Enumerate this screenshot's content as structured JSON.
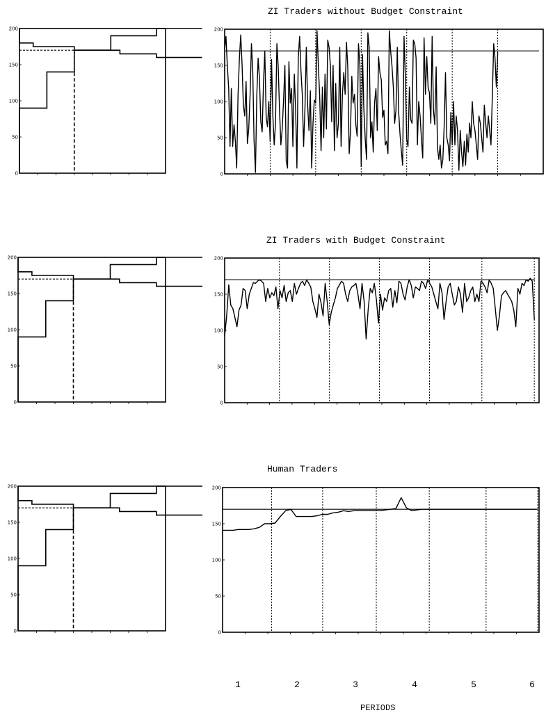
{
  "periods": [
    "1",
    "2",
    "3",
    "4",
    "5",
    "6"
  ],
  "xlabel": "PERIODS",
  "chart_data": [
    {
      "type": "line",
      "id": "zi-no-budget",
      "title": "ZI Traders without Budget Constraint",
      "ylim": [
        0,
        200
      ],
      "yticks": [
        0,
        50,
        100,
        150,
        200
      ],
      "equilibrium_price": 170,
      "period_boundaries": [
        10,
        20,
        30,
        40,
        50,
        60
      ],
      "n_periods": 6,
      "xlim": [
        0,
        70
      ],
      "prices": [
        172,
        190,
        150,
        118,
        38,
        118,
        38,
        68,
        45,
        8,
        108,
        160,
        192,
        152,
        95,
        80,
        128,
        42,
        62,
        110,
        180,
        142,
        45,
        2,
        108,
        160,
        132,
        72,
        58,
        125,
        170,
        78,
        65,
        100,
        45,
        158,
        80,
        40,
        70,
        180,
        148,
        88,
        40,
        62,
        102,
        150,
        18,
        8,
        155,
        98,
        118,
        38,
        138,
        90,
        8,
        160,
        190,
        142,
        110,
        38,
        92,
        175,
        95,
        60,
        115,
        8,
        70,
        102,
        98,
        198,
        150,
        108,
        32,
        120,
        50,
        138,
        62,
        185,
        175,
        150,
        72,
        150,
        32,
        125,
        50,
        70,
        175,
        38,
        110,
        140,
        110,
        182,
        148,
        28,
        58,
        135,
        98,
        110,
        68,
        52,
        180,
        150,
        10,
        165,
        90,
        48,
        20,
        195,
        175,
        50,
        72,
        30,
        98,
        118,
        60,
        162,
        140,
        130,
        78,
        88,
        40,
        45,
        28,
        198,
        170,
        150,
        120,
        70,
        88,
        175,
        85,
        55,
        32,
        12,
        190,
        135,
        48,
        38,
        120,
        75,
        70,
        185,
        180,
        160,
        40,
        100,
        80,
        48,
        22,
        188,
        110,
        162,
        120,
        112,
        70,
        190,
        88,
        68,
        148,
        36,
        20,
        40,
        8,
        20,
        66,
        140,
        50,
        40,
        18,
        85,
        40,
        100,
        40,
        80,
        60,
        5,
        60,
        30,
        10,
        45,
        12,
        55,
        30,
        70,
        50,
        100,
        70,
        60,
        40,
        20,
        80,
        70,
        50,
        30,
        95,
        70,
        50,
        80,
        60,
        40,
        110,
        180,
        160,
        120,
        168
      ]
    },
    {
      "type": "line",
      "id": "zi-budget",
      "title": "ZI Traders with Budget Constraint",
      "ylim": [
        0,
        200
      ],
      "yticks": [
        0,
        50,
        100,
        150,
        200
      ],
      "equilibrium_price": 170,
      "period_boundaries": [
        11.5,
        22,
        32.5,
        43,
        54,
        65
      ],
      "n_periods": 6,
      "xlim": [
        0,
        66
      ],
      "prices": [
        92,
        120,
        163,
        135,
        130,
        118,
        105,
        128,
        135,
        158,
        155,
        130,
        150,
        158,
        166,
        165,
        168,
        170,
        168,
        165,
        140,
        158,
        145,
        152,
        148,
        160,
        130,
        155,
        145,
        162,
        140,
        152,
        155,
        140,
        165,
        150,
        158,
        165,
        168,
        162,
        170,
        165,
        160,
        140,
        130,
        118,
        150,
        138,
        120,
        165,
        140,
        108,
        125,
        135,
        145,
        158,
        163,
        168,
        165,
        150,
        140,
        155,
        160,
        162,
        165,
        150,
        130,
        165,
        140,
        88,
        130,
        158,
        152,
        165,
        142,
        110,
        150,
        128,
        145,
        140,
        155,
        158,
        132,
        155,
        138,
        168,
        165,
        150,
        142,
        160,
        170,
        162,
        145,
        160,
        158,
        155,
        168,
        165,
        158,
        170,
        165,
        160,
        150,
        140,
        130,
        165,
        152,
        115,
        140,
        160,
        165,
        150,
        135,
        140,
        160,
        150,
        125,
        165,
        140,
        145,
        155,
        160,
        140,
        150,
        140,
        168,
        165,
        160,
        152,
        170,
        165,
        158,
        130,
        100,
        120,
        148,
        152,
        155,
        150,
        145,
        140,
        128,
        105,
        158,
        150,
        165,
        162,
        170,
        168,
        172,
        168,
        115
      ]
    },
    {
      "type": "line",
      "id": "human",
      "title": "Human Traders",
      "ylim": [
        0,
        200
      ],
      "yticks": [
        0,
        50,
        100,
        150,
        200
      ],
      "equilibrium_price": 170,
      "period_boundaries": [
        7.6,
        15.5,
        23.8,
        32,
        40.8,
        48.8
      ],
      "n_periods": 6,
      "xlim": [
        0,
        49
      ],
      "prices": [
        141,
        141,
        141,
        142,
        142,
        142,
        143,
        145,
        150,
        150,
        151,
        160,
        168,
        170,
        160,
        160,
        160,
        160,
        161,
        163,
        163,
        165,
        166,
        168,
        167,
        168,
        168,
        168,
        168,
        168,
        168,
        169,
        170,
        171,
        186,
        172,
        168,
        169,
        170,
        170,
        170,
        170,
        170,
        170,
        170,
        170,
        170,
        170,
        170,
        170,
        170,
        170,
        170,
        170,
        170,
        170,
        170,
        170,
        170,
        170,
        170
      ]
    },
    {
      "type": "step",
      "id": "supply-demand",
      "title": "",
      "ylim": [
        0,
        200
      ],
      "yticks": [
        0,
        50,
        100,
        150,
        200
      ],
      "equilibrium_price": 170,
      "equilibrium_quantity": 6,
      "demand": [
        [
          0,
          200
        ],
        [
          0,
          180
        ],
        [
          1.5,
          180
        ],
        [
          1.5,
          175
        ],
        [
          6,
          175
        ],
        [
          6,
          170
        ],
        [
          11,
          170
        ],
        [
          11,
          165
        ],
        [
          15,
          165
        ],
        [
          15,
          160
        ],
        [
          20,
          160
        ]
      ],
      "supply": [
        [
          0,
          0
        ],
        [
          0,
          90
        ],
        [
          3,
          90
        ],
        [
          3,
          140
        ],
        [
          6,
          140
        ],
        [
          6,
          170
        ],
        [
          10,
          170
        ],
        [
          10,
          190
        ],
        [
          15,
          190
        ],
        [
          15,
          200
        ],
        [
          20,
          200
        ]
      ],
      "xlim": [
        0,
        16
      ]
    }
  ]
}
